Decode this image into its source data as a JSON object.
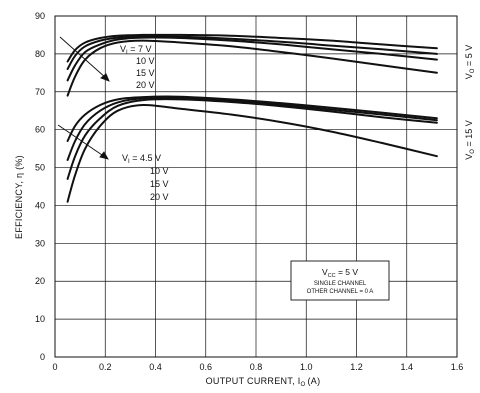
{
  "chart_data": {
    "type": "line",
    "title": "",
    "xlabel": "OUTPUT CURRENT, I",
    "xlabel_sub": "O",
    "xlabel_unit": "(A)",
    "ylabel": "EFFICIENCY, η (%)",
    "xlim": [
      0,
      1.6
    ],
    "ylim": [
      0,
      90
    ],
    "xticks": [
      0,
      0.2,
      0.4,
      0.6,
      0.8,
      1.0,
      1.2,
      1.4,
      1.6
    ],
    "xtick_labels": [
      "0",
      "0.2",
      "0.4",
      "0.6",
      "0.8",
      "1.0",
      "1.2",
      "1.4",
      "1.6"
    ],
    "yticks": [
      0,
      10,
      20,
      30,
      40,
      50,
      60,
      70,
      80,
      90
    ],
    "ytick_labels": [
      "0",
      "10",
      "20",
      "30",
      "40",
      "50",
      "60",
      "70",
      "80",
      "90"
    ],
    "grid": true,
    "color": "#111111",
    "series": [
      {
        "group": "vo5",
        "x": [
          0.05,
          0.08,
          0.12,
          0.18,
          0.25,
          0.35,
          0.5,
          0.7,
          0.9,
          1.1,
          1.3,
          1.52
        ],
        "y": [
          78,
          81,
          83,
          84.2,
          84.8,
          85,
          85,
          84.8,
          84.2,
          83.5,
          82.5,
          81.5
        ]
      },
      {
        "group": "vo5",
        "x": [
          0.05,
          0.08,
          0.12,
          0.18,
          0.25,
          0.35,
          0.5,
          0.7,
          0.9,
          1.1,
          1.3,
          1.52
        ],
        "y": [
          76,
          79.5,
          82,
          83.5,
          84.3,
          84.6,
          84.5,
          84,
          83.2,
          82.2,
          81.2,
          80
        ]
      },
      {
        "group": "vo5",
        "x": [
          0.05,
          0.08,
          0.12,
          0.18,
          0.25,
          0.35,
          0.5,
          0.7,
          0.9,
          1.1,
          1.3,
          1.52
        ],
        "y": [
          73,
          77,
          80.5,
          82.5,
          83.8,
          84.3,
          84.2,
          83.5,
          82.5,
          81.2,
          80,
          78.5
        ]
      },
      {
        "group": "vo5",
        "x": [
          0.05,
          0.08,
          0.12,
          0.18,
          0.25,
          0.35,
          0.5,
          0.7,
          0.9,
          1.1,
          1.3,
          1.52
        ],
        "y": [
          69,
          74,
          78.5,
          81.5,
          83,
          83.5,
          83,
          82,
          80.5,
          78.8,
          77,
          75
        ]
      },
      {
        "group": "vo15",
        "x": [
          0.05,
          0.08,
          0.12,
          0.18,
          0.25,
          0.35,
          0.5,
          0.7,
          0.9,
          1.1,
          1.3,
          1.52
        ],
        "y": [
          57,
          61,
          64,
          66.5,
          68,
          68.6,
          68.7,
          68,
          67,
          65.8,
          64.5,
          63
        ]
      },
      {
        "group": "vo15",
        "x": [
          0.05,
          0.08,
          0.12,
          0.18,
          0.25,
          0.35,
          0.5,
          0.7,
          0.9,
          1.1,
          1.3,
          1.52
        ],
        "y": [
          52,
          57,
          61.5,
          65,
          67.2,
          68.3,
          68.4,
          67.7,
          66.6,
          65.3,
          64,
          62.5
        ]
      },
      {
        "group": "vo15",
        "x": [
          0.05,
          0.08,
          0.12,
          0.18,
          0.25,
          0.35,
          0.5,
          0.7,
          0.9,
          1.1,
          1.3,
          1.52
        ],
        "y": [
          47,
          53,
          58.5,
          63,
          66.3,
          67.8,
          68,
          67.3,
          66.2,
          64.8,
          63.3,
          61.8
        ]
      },
      {
        "group": "vo15",
        "x": [
          0.05,
          0.08,
          0.12,
          0.18,
          0.25,
          0.35,
          0.5,
          0.7,
          0.9,
          1.1,
          1.3,
          1.52
        ],
        "y": [
          41,
          48,
          55,
          61,
          65,
          66.5,
          65.5,
          64,
          62,
          59.5,
          56.5,
          53
        ]
      }
    ],
    "annotations": {
      "vo5_vi": {
        "label": "V",
        "sub": "I",
        "rest": " = 7 V",
        "values": [
          "10 V",
          "15 V",
          "20 V"
        ]
      },
      "vo15_vi": {
        "label": "V",
        "sub": "I",
        "rest": " = 4.5 V",
        "values": [
          "10 V",
          "15 V",
          "20 V"
        ]
      },
      "vo5_label": {
        "label": "V",
        "sub": "O",
        "rest": " = 5 V"
      },
      "vo15_label": {
        "label": "V",
        "sub": "O",
        "rest": " = 15 V"
      },
      "conditions": {
        "vcc_label": "V",
        "vcc_sub": "CC",
        "vcc_rest": " = 5 V",
        "line2": "SINGLE CHANNEL",
        "line3": "OTHER CHANNEL = 0 A"
      }
    }
  }
}
